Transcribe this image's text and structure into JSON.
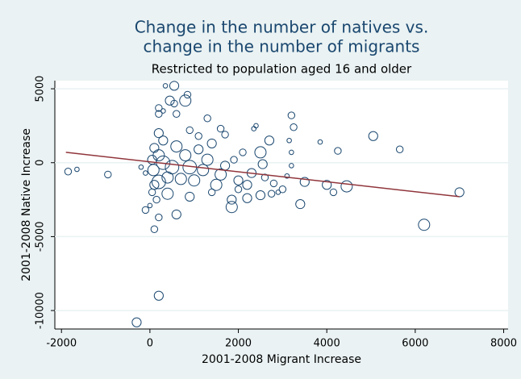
{
  "chart_data": {
    "type": "scatter",
    "title": [
      "Change in the number of natives vs.",
      "change in the number of migrants"
    ],
    "subtitle": "Restricted to population aged 16 and older",
    "x_label": "2001-2008 Migrant Increase",
    "y_label": "2001-2008 Native Increase",
    "xlim": [
      -2150,
      8100
    ],
    "ylim": [
      -11250,
      5550
    ],
    "xticks": [
      -2000,
      0,
      2000,
      4000,
      6000,
      8000
    ],
    "yticks": [
      -10000,
      -5000,
      0,
      5000
    ],
    "grid": true,
    "color": "#1a476f",
    "x": [
      -1850,
      -1650,
      -950,
      -300,
      200,
      600,
      100,
      -100,
      200,
      0,
      350,
      550,
      850,
      800,
      450,
      550,
      200,
      300,
      200,
      600,
      1300,
      3200,
      3250,
      2400,
      2350,
      2700,
      3150,
      3850,
      4250,
      5050,
      5650,
      3200,
      3200,
      3100,
      3500,
      4000,
      4150,
      4450,
      3400,
      6200,
      7000,
      2500,
      2550,
      2100,
      2200,
      2500,
      1850,
      1850,
      2750,
      3000,
      2900,
      1100,
      900,
      1600,
      1700,
      1400,
      1900,
      1500,
      1000,
      700,
      500,
      300,
      200,
      100,
      300,
      200,
      400,
      800,
      1200,
      1600,
      2000,
      2200,
      100,
      50,
      150,
      -200,
      -100,
      600,
      900,
      1300,
      1100,
      1700,
      2300,
      2600,
      2800,
      2000,
      1400,
      900,
      400,
      200,
      50,
      80
    ],
    "y": [
      -600,
      -450,
      -800,
      -10800,
      -9000,
      -3500,
      -4500,
      -3200,
      -3700,
      -2900,
      5200,
      5200,
      4600,
      4200,
      4200,
      4000,
      3700,
      3500,
      3300,
      3300,
      3000,
      3200,
      2400,
      2500,
      2300,
      1500,
      1500,
      1400,
      800,
      1800,
      900,
      700,
      -200,
      -900,
      -1300,
      -1500,
      -2000,
      -1600,
      -2800,
      -4200,
      -2000,
      700,
      -100,
      700,
      -2400,
      -2200,
      -3000,
      -2500,
      -2100,
      -1800,
      -2000,
      1800,
      2200,
      2300,
      1900,
      1300,
      200,
      -1500,
      -1200,
      -1100,
      -300,
      0,
      500,
      1000,
      1500,
      2000,
      -1000,
      500,
      -500,
      -800,
      -1200,
      -1500,
      -1500,
      -2000,
      -2500,
      -300,
      -700,
      1100,
      -300,
      200,
      900,
      -200,
      -700,
      -1000,
      -1400,
      -1800,
      -2000,
      -2300,
      -2100,
      -1300,
      200,
      -500
    ],
    "sizes": [
      3,
      2,
      3,
      4,
      4,
      4,
      3,
      3,
      3,
      2,
      2,
      4,
      3,
      5,
      4,
      3,
      3,
      2,
      3,
      3,
      3,
      3,
      3,
      2,
      2,
      4,
      2,
      2,
      3,
      4,
      3,
      2,
      2,
      2,
      4,
      4,
      3,
      5,
      4,
      5,
      4,
      5,
      4,
      3,
      4,
      4,
      5,
      4,
      3,
      3,
      2,
      3,
      3,
      3,
      3,
      4,
      3,
      5,
      5,
      5,
      6,
      6,
      5,
      4,
      4,
      4,
      5,
      5,
      5,
      5,
      4,
      4,
      4,
      3,
      3,
      2,
      2,
      5,
      6,
      5,
      4,
      4,
      4,
      3,
      3,
      3,
      3,
      4,
      5,
      6,
      4,
      5
    ],
    "fit_line": {
      "x": [
        -1900,
        7000
      ],
      "y": [
        700,
        -2300
      ],
      "color": "#90353b"
    }
  }
}
